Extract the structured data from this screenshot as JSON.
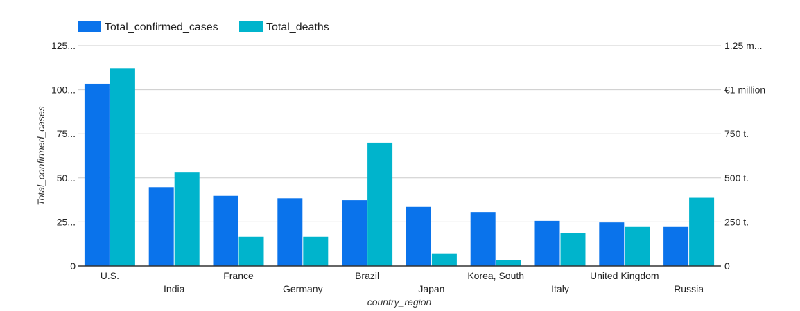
{
  "chart_data": {
    "type": "bar",
    "categories": [
      "U.S.",
      "India",
      "France",
      "Germany",
      "Brazil",
      "Japan",
      "Korea, South",
      "Italy",
      "United Kingdom",
      "Russia"
    ],
    "series": [
      {
        "name": "Total_confirmed_cases",
        "color": "#0a73eb",
        "axis": "left",
        "values": [
          103.4,
          44.7,
          39.8,
          38.4,
          37.3,
          33.5,
          30.6,
          25.6,
          24.7,
          22.1
        ]
      },
      {
        "name": "Total_deaths",
        "color": "#00b4cc",
        "axis": "right",
        "values": [
          1123000,
          530000,
          166000,
          166000,
          700000,
          72000,
          33000,
          188000,
          221000,
          387000
        ]
      }
    ],
    "xlabel": "country_region",
    "ylabel": "Total_confirmed_cases",
    "ylim": [
      0,
      125
    ],
    "y2lim": [
      0,
      1250000
    ],
    "yticks": [
      {
        "value": 0,
        "label": "0"
      },
      {
        "value": 25,
        "label": "25..."
      },
      {
        "value": 50,
        "label": "50..."
      },
      {
        "value": 75,
        "label": "75..."
      },
      {
        "value": 100,
        "label": "100..."
      },
      {
        "value": 125,
        "label": "125..."
      }
    ],
    "y2ticks": [
      {
        "value": 0,
        "label": "0"
      },
      {
        "value": 250000,
        "label": "250 t."
      },
      {
        "value": 500000,
        "label": "500 t."
      },
      {
        "value": 750000,
        "label": "750 t."
      },
      {
        "value": 1000000,
        "label": "€1 million"
      },
      {
        "value": 1250000,
        "label": "1.25 m..."
      }
    ],
    "grid": true,
    "legend_position": "top-left"
  }
}
